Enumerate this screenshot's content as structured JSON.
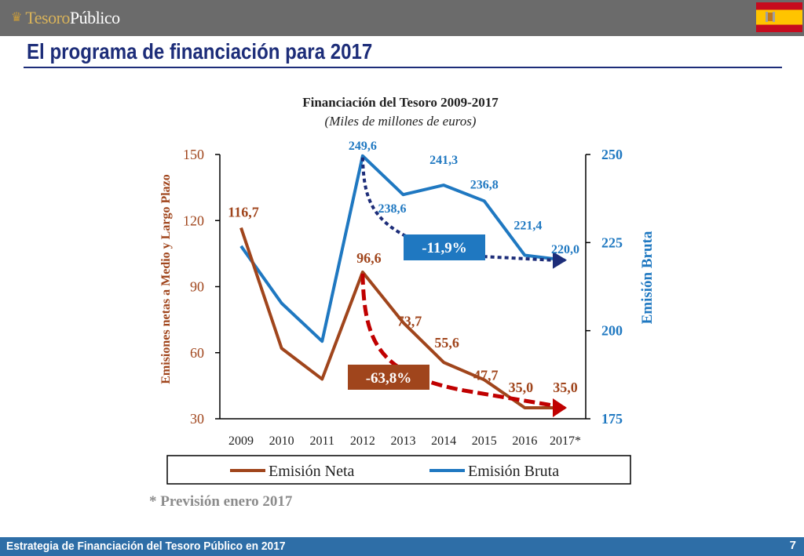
{
  "header": {
    "logo_part1": "Tesoro",
    "logo_part2": "Público",
    "flag_icon": "spain-flag-icon"
  },
  "page_title": "El programa de financiación para 2017",
  "chart_data": {
    "type": "line",
    "title": "Financiación del Tesoro 2009-2017",
    "subtitle": "(Miles de millones de euros)",
    "categories": [
      "2009",
      "2010",
      "2011",
      "2012",
      "2013",
      "2014",
      "2015",
      "2016",
      "2017*"
    ],
    "ylabel": "Emisiones netas a Medio y Largo Plazo",
    "y2label": "Emisión Bruta",
    "ylim": [
      30,
      150
    ],
    "yticks": [
      "30",
      "60",
      "90",
      "120",
      "150"
    ],
    "y2lim": [
      175,
      250
    ],
    "y2ticks": [
      "175",
      "200",
      "225",
      "250"
    ],
    "series": [
      {
        "name": "Emisión Neta",
        "axis": "left",
        "color": "#a0451c",
        "values": [
          116.7,
          62,
          48,
          96.6,
          73.7,
          55.6,
          47.7,
          35.0,
          35.0
        ],
        "labels": [
          "116,7",
          "",
          "",
          "96,6",
          "73,7",
          "55,6",
          "47,7",
          "35,0",
          "35,0"
        ]
      },
      {
        "name": "Emisión Bruta",
        "axis": "right",
        "color": "#1f78c1",
        "values": [
          224,
          207.8,
          197,
          249.6,
          238.6,
          241.3,
          236.8,
          221.4,
          220.0
        ],
        "labels": [
          "",
          "",
          "",
          "249,6",
          "238,6",
          "241,3",
          "236,8",
          "221,4",
          "220,0"
        ]
      }
    ],
    "annotations": [
      {
        "text": "-11,9%",
        "box_color": "#1f78c1",
        "arrow_color": "#1d2d79"
      },
      {
        "text": "-63,8%",
        "box_color": "#a0451c",
        "arrow_color": "#c00000"
      }
    ],
    "legend": "bottom",
    "grid": false
  },
  "footnote": "* Previsión enero 2017",
  "footer": {
    "text": "Estrategia de Financiación del Tesoro Público en 2017",
    "page": "7"
  }
}
